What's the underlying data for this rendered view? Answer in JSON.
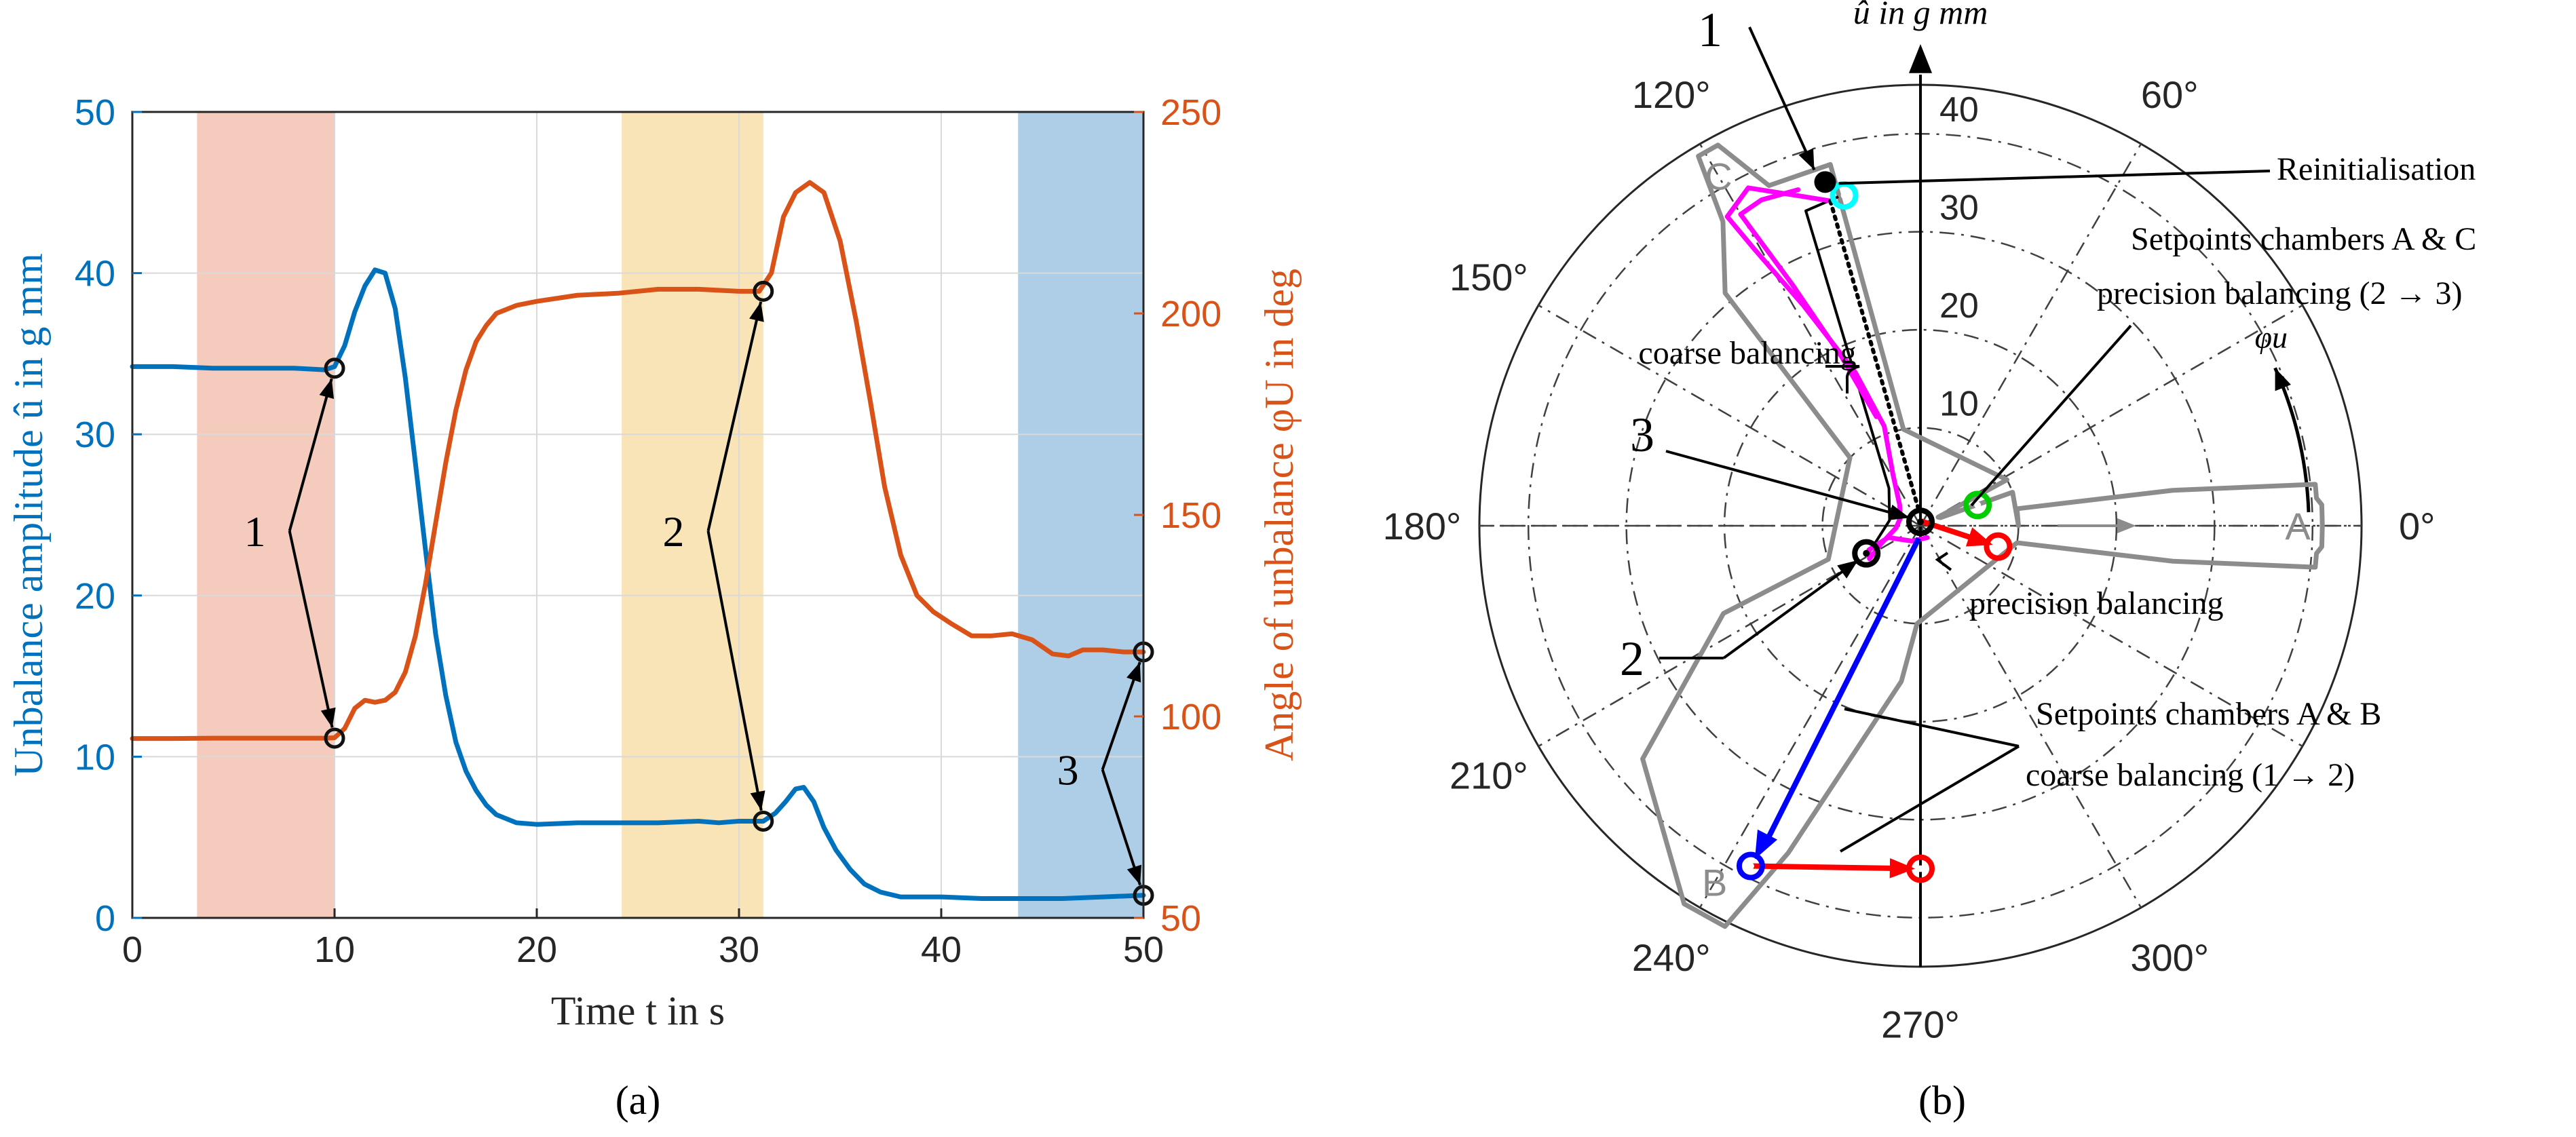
{
  "chart_data": [
    {
      "panel_label": "(a)",
      "type": "line",
      "xlabel": "Time t in s",
      "ylabel_left": "Unbalance amplitude û in g mm",
      "ylabel_right": "Angle of unbalance φU in deg",
      "xlim": [
        0,
        50
      ],
      "ylim_left": [
        0,
        50
      ],
      "ylim_right": [
        50,
        250
      ],
      "x_ticks": [
        "0",
        "10",
        "20",
        "30",
        "40",
        "50"
      ],
      "y_ticks_left": [
        "0",
        "10",
        "20",
        "30",
        "40",
        "50"
      ],
      "y_ticks_right": [
        "50",
        "100",
        "150",
        "200",
        "250"
      ],
      "grid": true,
      "colors": {
        "left_axis": "#0072BD",
        "right_axis": "#D95319"
      },
      "shaded_intervals": [
        {
          "from": 3.2,
          "to": 10,
          "color": "#EBA087"
        },
        {
          "from": 24.2,
          "to": 31.2,
          "color": "#F2CE7B"
        },
        {
          "from": 43.8,
          "to": 50,
          "color": "#6BA6D4"
        }
      ],
      "series": [
        {
          "axis": "left",
          "color": "#0072BD",
          "x": [
            0,
            2,
            4,
            6,
            8,
            9.5,
            10,
            10.5,
            11,
            11.5,
            12,
            12.5,
            13,
            13.5,
            14,
            14.5,
            15,
            15.5,
            16,
            16.5,
            17,
            17.5,
            18,
            19,
            20,
            22,
            24,
            26,
            28,
            29,
            30,
            30.5,
            31.2,
            31.8,
            32.3,
            32.8,
            33.2,
            33.7,
            34.2,
            34.8,
            35.5,
            36.2,
            37,
            38,
            39,
            40,
            42,
            44,
            46,
            48,
            50
          ],
          "y": [
            34.2,
            34.2,
            34.1,
            34.1,
            34.1,
            34.0,
            34.2,
            35.5,
            37.6,
            39.2,
            40.2,
            40.0,
            37.8,
            33.5,
            28.2,
            22.8,
            17.6,
            13.8,
            10.9,
            9.1,
            7.9,
            7.0,
            6.4,
            5.9,
            5.8,
            5.9,
            5.9,
            5.9,
            6.0,
            5.9,
            6.0,
            6.0,
            6.0,
            6.5,
            7.2,
            8.0,
            8.1,
            7.2,
            5.6,
            4.2,
            3.0,
            2.1,
            1.6,
            1.3,
            1.3,
            1.3,
            1.2,
            1.2,
            1.2,
            1.3,
            1.4
          ]
        },
        {
          "axis": "right",
          "color": "#D95319",
          "x": [
            0,
            2,
            4,
            6,
            8,
            9.5,
            10,
            10.5,
            11,
            11.5,
            12,
            12.5,
            13,
            13.5,
            14,
            14.5,
            15,
            15.5,
            16,
            16.5,
            17,
            17.5,
            18,
            19,
            20,
            22,
            24,
            26,
            28,
            30,
            31,
            31.6,
            32.2,
            32.8,
            33.5,
            34.2,
            35,
            35.8,
            36.5,
            37.2,
            38,
            38.8,
            39.6,
            40.5,
            41.5,
            42.5,
            43.5,
            44.5,
            45.5,
            46.3,
            47,
            48,
            49,
            50
          ],
          "y": [
            94.5,
            94.5,
            94.6,
            94.6,
            94.6,
            94.6,
            94.7,
            97,
            102,
            104,
            103.5,
            104,
            106,
            111,
            120,
            133,
            148,
            163,
            176,
            186,
            193,
            197,
            200,
            202,
            203,
            204.5,
            205,
            206,
            206,
            205.5,
            205.5,
            210,
            224,
            230,
            232.5,
            230,
            218,
            198,
            178,
            157,
            140,
            130,
            126,
            123,
            120,
            120,
            120.5,
            119,
            115.5,
            115,
            116.5,
            116.5,
            116,
            116
          ]
        }
      ],
      "markers": [
        {
          "axis": "left",
          "x": 10,
          "y": 34.1
        },
        {
          "axis": "right",
          "x": 10,
          "y": 94.6
        },
        {
          "axis": "right",
          "x": 31.2,
          "y": 205.5
        },
        {
          "axis": "left",
          "x": 31.2,
          "y": 6.0
        },
        {
          "axis": "left",
          "x": 50,
          "y": 1.4
        },
        {
          "axis": "right",
          "x": 50,
          "y": 116
        }
      ],
      "annotations": [
        {
          "text": "1",
          "from": [
            6.6,
            24
          ],
          "to_markers": [
            0,
            1
          ]
        },
        {
          "text": "2",
          "from": [
            27.3,
            24
          ],
          "to_markers": [
            2,
            3
          ]
        },
        {
          "text": "3",
          "from": [
            46.8,
            9.2
          ],
          "to_markers": [
            5,
            4
          ]
        }
      ]
    },
    {
      "panel_label": "(b)",
      "type": "polar",
      "radial_label": "û in g mm",
      "angle_label": "φu",
      "rmax": 45,
      "radial_ticks": [
        "10",
        "20",
        "30",
        "40"
      ],
      "angle_ticks": [
        "0°",
        "60°",
        "120°",
        "150°",
        "180°",
        "210°",
        "240°",
        "270°",
        "300°"
      ],
      "chamber_labels": [
        "A",
        "B",
        "C"
      ],
      "colors": {
        "coarse_path": "#FF00FF",
        "vector": "#0000FF",
        "setpoint": "#FF0000",
        "start_point": "#00FFFF",
        "green_point": "#00CC00",
        "outline": "#8C8C8C"
      },
      "chamber_outline_polar": [
        [
          0,
          10
        ],
        [
          20,
          10
        ],
        [
          22,
          2.2
        ],
        [
          26,
          2
        ],
        [
          28,
          10
        ],
        [
          100,
          10
        ],
        [
          104,
          38
        ],
        [
          114,
          38
        ],
        [
          118,
          44
        ],
        [
          121,
          44
        ],
        [
          123,
          37
        ],
        [
          130,
          31
        ],
        [
          136,
          10
        ],
        [
          200,
          10
        ],
        [
          204,
          22
        ],
        [
          220,
          37
        ],
        [
          238,
          45.5
        ],
        [
          244,
          45.5
        ],
        [
          248,
          36
        ],
        [
          263,
          16
        ],
        [
          268,
          10
        ],
        [
          350,
          10
        ],
        [
          352,
          26
        ],
        [
          354,
          40.5
        ],
        [
          356,
          40.5
        ],
        [
          357,
          41
        ],
        [
          360,
          41
        ],
        [
          3,
          41
        ],
        [
          4,
          40.5
        ],
        [
          6,
          40.5
        ],
        [
          8,
          26
        ],
        [
          10,
          10
        ]
      ],
      "coarse_path_polar": [
        [
          105.5,
          34.4
        ],
        [
          110,
          35.8
        ],
        [
          117,
          38.7
        ],
        [
          122,
          37.2
        ],
        [
          121,
          33
        ],
        [
          118,
          25.5
        ],
        [
          113,
          17
        ],
        [
          110,
          10.8
        ],
        [
          118,
          6
        ],
        [
          135,
          3
        ],
        [
          160,
          2.2
        ],
        [
          185,
          2.5
        ],
        [
          205,
          4.5
        ],
        [
          213,
          6.2
        ],
        [
          205,
          5.8
        ],
        [
          200,
          3.5
        ],
        [
          240,
          1.8
        ],
        [
          300,
          1.4
        ]
      ],
      "coarse_path_b_polar": [
        [
          110,
          36.5
        ],
        [
          116,
          37
        ],
        [
          120,
          36.7
        ],
        [
          118,
          28
        ],
        [
          115,
          19
        ],
        [
          112,
          12
        ]
      ],
      "dotted_line": [
        [
          105.5,
          34.4
        ],
        [
          93,
          1.2
        ]
      ],
      "black_path_polar": [
        [
          104,
          34.6
        ],
        [
          110,
          34.2
        ],
        [
          130,
          5
        ],
        [
          170,
          3.2
        ],
        [
          208,
          6
        ]
      ],
      "blue_vector": {
        "from": [
          262,
          1.3
        ],
        "to": [
          243.5,
          38.8
        ]
      },
      "setpoint_segments": [
        {
          "from": [
            243.5,
            38.8
          ],
          "to": [
            270,
            35
          ],
          "color": "#FF0000"
        },
        {
          "from": [
            90,
            0.5
          ],
          "to": [
            345,
            8.2
          ],
          "color": "#FF0000"
        }
      ],
      "points": [
        {
          "name": "start",
          "polar": [
            103,
            34.6
          ],
          "color": "#00FFFF"
        },
        {
          "name": "point-3",
          "polar": [
            90,
            0.4
          ],
          "color": "#000000"
        },
        {
          "name": "point-2",
          "polar": [
            207,
            6.2
          ],
          "color": "#000000"
        },
        {
          "name": "green",
          "polar": [
            20,
            6.2
          ],
          "color": "#00CC00"
        },
        {
          "name": "red-A",
          "polar": [
            345,
            8.2
          ],
          "color": "#FF0000"
        },
        {
          "name": "blue-B",
          "polar": [
            243.5,
            38.8
          ],
          "color": "#0000FF"
        },
        {
          "name": "red-270",
          "polar": [
            270,
            35
          ],
          "color": "#FF0000"
        }
      ],
      "annotations": [
        {
          "text": "1"
        },
        {
          "text": "2"
        },
        {
          "text": "3"
        },
        {
          "text": "Reinitialisation"
        },
        {
          "text": "Setpoints chambers A & C"
        },
        {
          "text": "precision balancing (2 → 3)"
        },
        {
          "text": "coarse balancing"
        },
        {
          "text": "precision balancing"
        },
        {
          "text": "Setpoints chambers A & B"
        },
        {
          "text": "coarse balancing (1 → 2)"
        }
      ]
    }
  ]
}
